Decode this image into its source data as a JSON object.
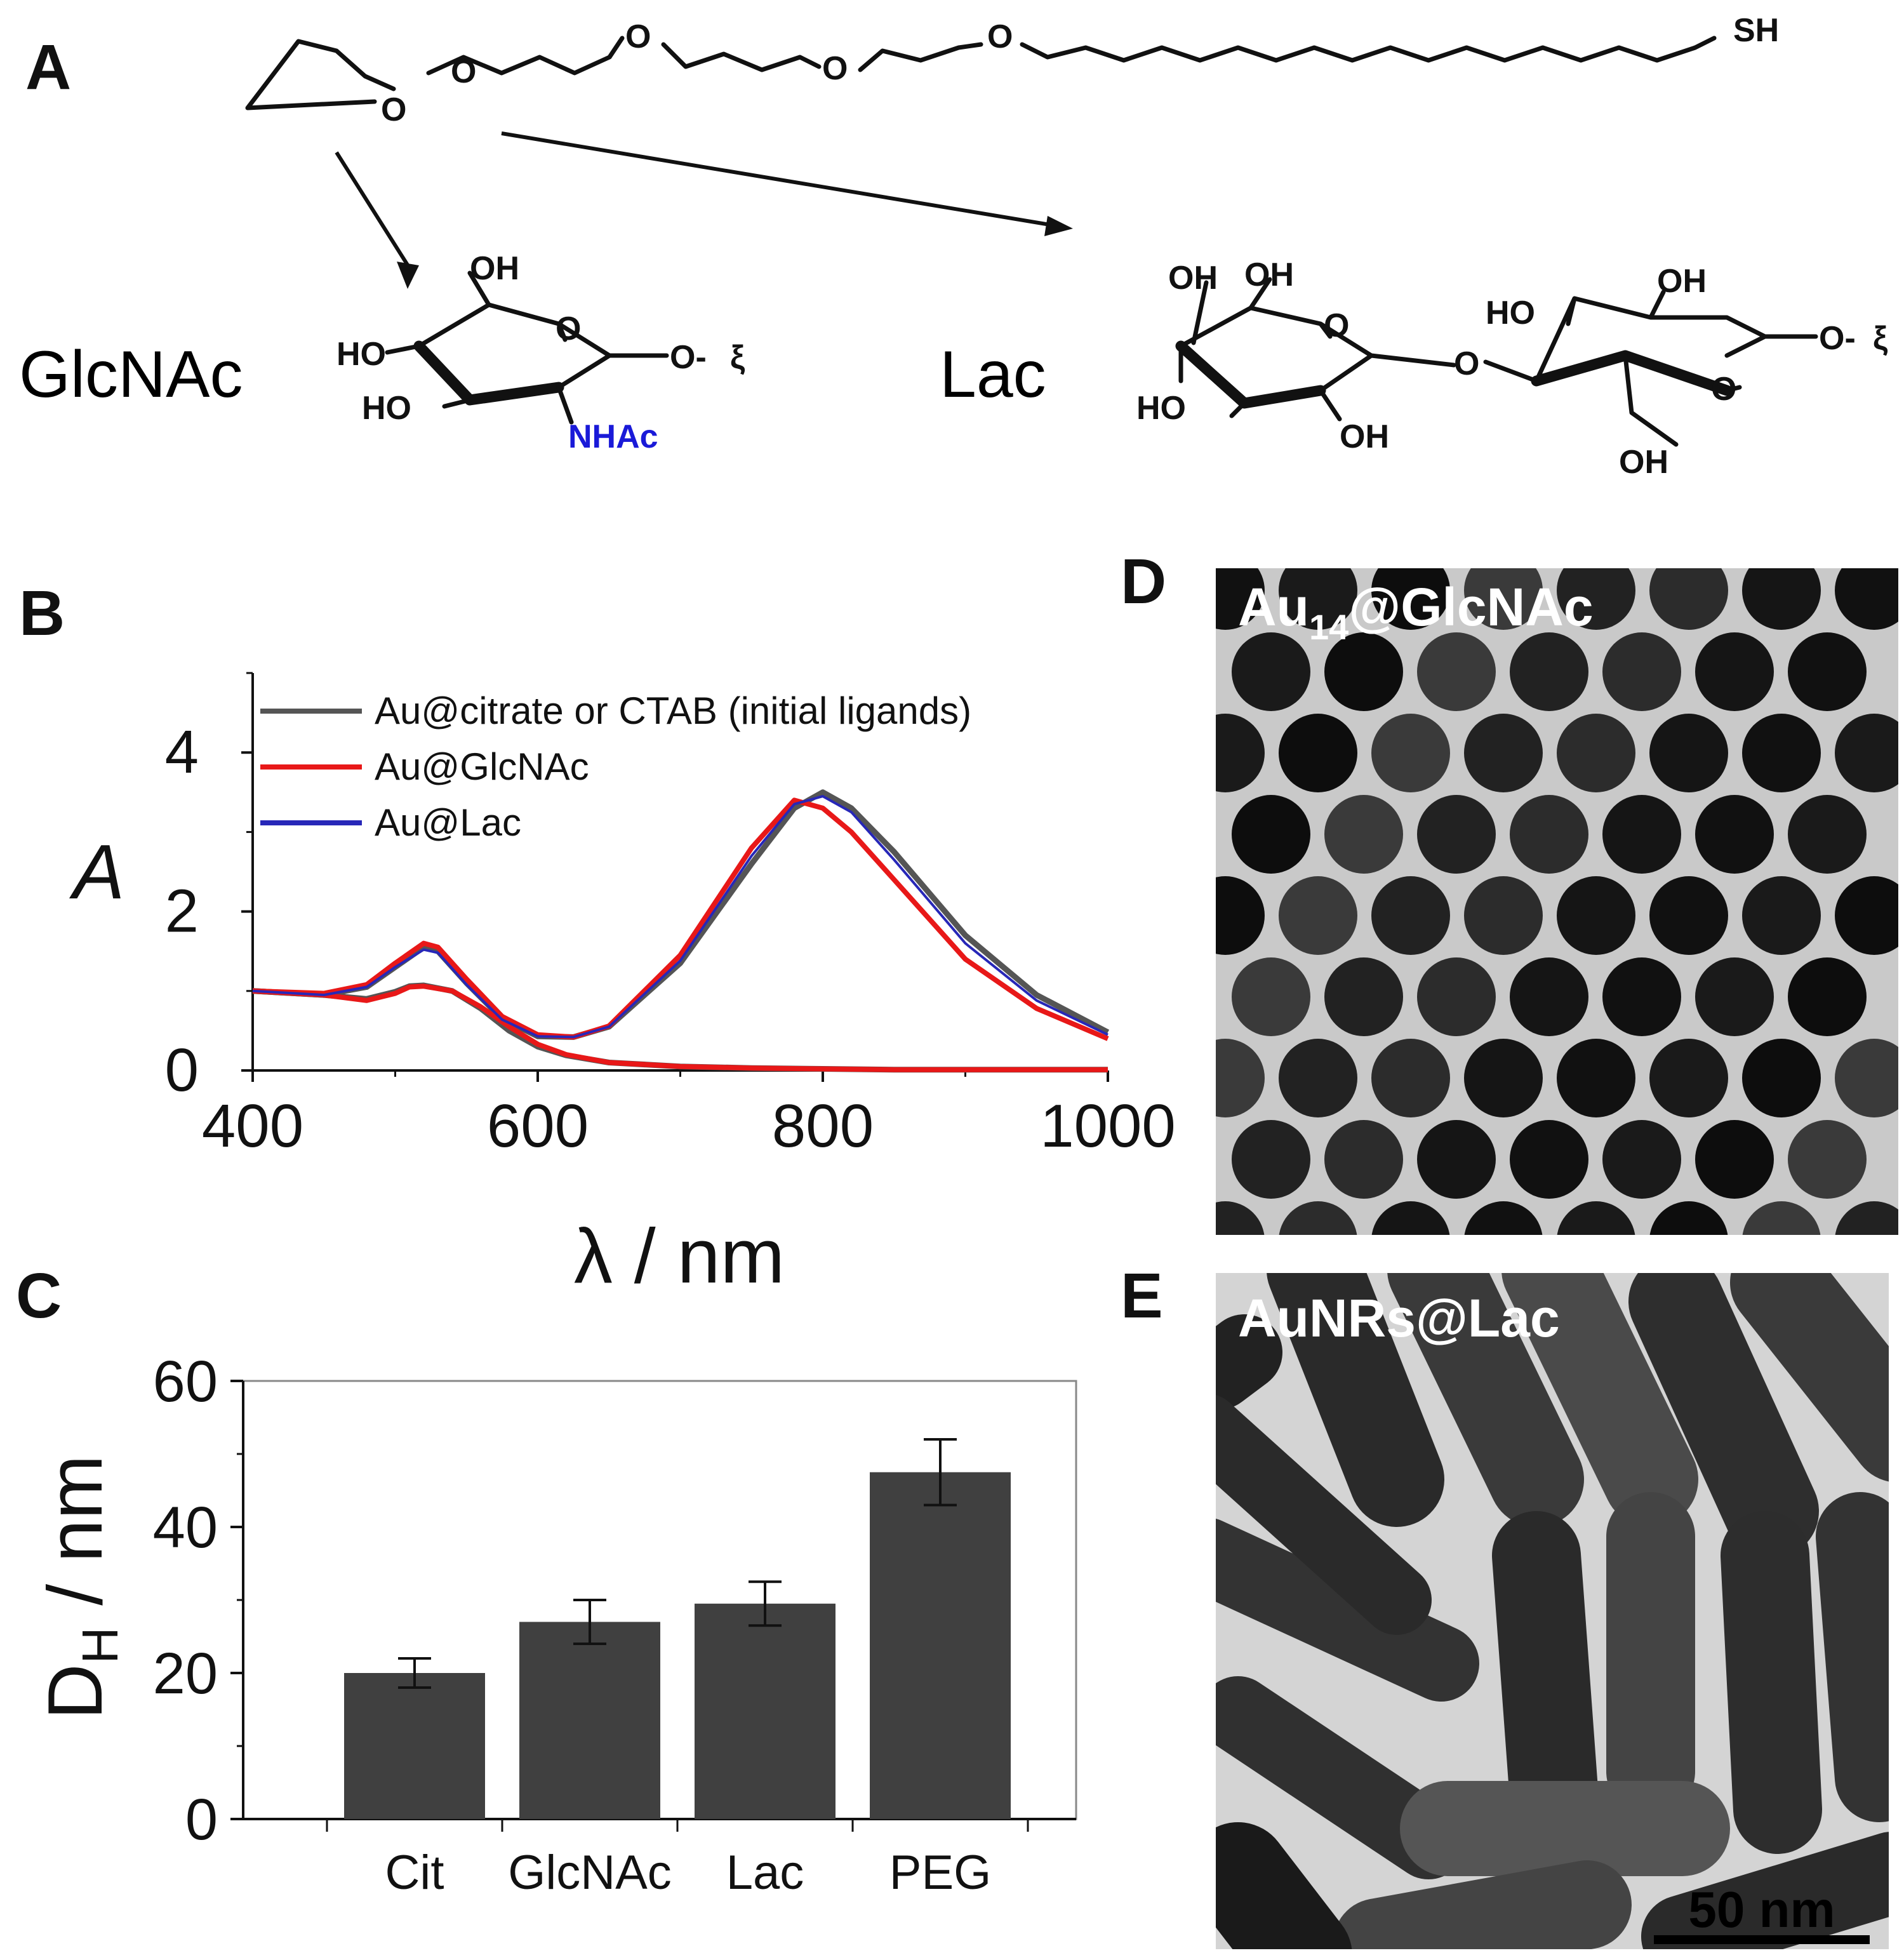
{
  "panels": {
    "a": "A",
    "b": "B",
    "c": "C",
    "d": "D",
    "e": "E"
  },
  "panel_a": {
    "label_glcnac": "GlcNAc",
    "label_lac": "Lac",
    "label_color": "#ff4a10",
    "nhac_color": "#1a1ad8",
    "atoms": {
      "sh": "SH",
      "o": "O",
      "oh": "OH",
      "ho": "HO",
      "nhac": "NHAc",
      "o_link": "O-",
      "squiggle": "ξ"
    }
  },
  "tem_d": {
    "label_main": "Au",
    "label_sub": "14",
    "label_rest": "@GlcNAc"
  },
  "tem_e": {
    "label": "AuNRs@Lac",
    "scale_bar": "50 nm"
  },
  "chart_data": [
    {
      "type": "line",
      "panel": "B",
      "xlabel": "λ / nm",
      "ylabel": "A",
      "xlim": [
        400,
        1000
      ],
      "ylim": [
        0,
        5
      ],
      "xticks": [
        400,
        600,
        800,
        1000
      ],
      "yticks": [
        0,
        2,
        4
      ],
      "legend_position": "top-left",
      "series": [
        {
          "name": "Au@citrate or CTAB (initial ligands)",
          "color": "#555555",
          "x": [
            400,
            450,
            480,
            500,
            510,
            520,
            540,
            560,
            580,
            600,
            620,
            650,
            700,
            750,
            800,
            850,
            900,
            950,
            1000
          ],
          "y": [
            1.0,
            0.95,
            0.9,
            0.99,
            1.06,
            1.07,
            1.0,
            0.78,
            0.5,
            0.3,
            0.19,
            0.1,
            0.05,
            0.03,
            0.02,
            0.01,
            0.01,
            0.01,
            0.01
          ]
        },
        {
          "name": "Au@citrate or CTAB (initial ligands)",
          "color": "#555555",
          "x": [
            400,
            450,
            480,
            500,
            520,
            530,
            550,
            575,
            600,
            625,
            650,
            700,
            750,
            780,
            800,
            820,
            850,
            900,
            950,
            1000
          ],
          "y": [
            1.0,
            0.95,
            1.05,
            1.3,
            1.55,
            1.5,
            1.1,
            0.65,
            0.43,
            0.42,
            0.55,
            1.35,
            2.6,
            3.3,
            3.5,
            3.3,
            2.75,
            1.7,
            0.95,
            0.48
          ]
        },
        {
          "name": "Au@GlcNAc",
          "color": "#e81818",
          "x": [
            400,
            450,
            480,
            500,
            520,
            530,
            550,
            575,
            600,
            625,
            650,
            700,
            750,
            780,
            800,
            820,
            850,
            900,
            950,
            1000
          ],
          "y": [
            1.0,
            0.97,
            1.08,
            1.35,
            1.6,
            1.55,
            1.15,
            0.68,
            0.45,
            0.42,
            0.56,
            1.45,
            2.8,
            3.4,
            3.3,
            3.0,
            2.4,
            1.4,
            0.78,
            0.4
          ]
        },
        {
          "name": "Au@GlcNAc",
          "color": "#e81818",
          "x": [
            400,
            450,
            480,
            500,
            510,
            520,
            540,
            560,
            580,
            600,
            620,
            650,
            700,
            750,
            800,
            850,
            900,
            950,
            1000
          ],
          "y": [
            1.0,
            0.95,
            0.88,
            0.97,
            1.05,
            1.06,
            1.0,
            0.8,
            0.55,
            0.33,
            0.2,
            0.1,
            0.05,
            0.03,
            0.02,
            0.01,
            0.01,
            0.01,
            0.01
          ]
        },
        {
          "name": "Au@Lac",
          "color": "#2727b8",
          "x": [
            400,
            450,
            480,
            500,
            520,
            530,
            550,
            575,
            600,
            625,
            650,
            700,
            750,
            780,
            800,
            820,
            850,
            900,
            950,
            1000
          ],
          "y": [
            1.0,
            0.95,
            1.05,
            1.3,
            1.52,
            1.48,
            1.08,
            0.64,
            0.43,
            0.42,
            0.55,
            1.38,
            2.7,
            3.35,
            3.45,
            3.25,
            2.65,
            1.6,
            0.88,
            0.45
          ]
        }
      ]
    },
    {
      "type": "bar",
      "panel": "C",
      "ylabel_main": "D",
      "ylabel_sub": "H",
      "ylabel_rest": " / nm",
      "ylim": [
        0,
        60
      ],
      "yticks": [
        0,
        20,
        40,
        60
      ],
      "categories": [
        "Cit",
        "GlcNAc",
        "Lac",
        "PEG"
      ],
      "values": [
        20,
        27,
        29.5,
        47.5
      ],
      "errors": [
        2,
        3,
        3,
        4.5
      ],
      "bar_color": "#404040"
    }
  ]
}
